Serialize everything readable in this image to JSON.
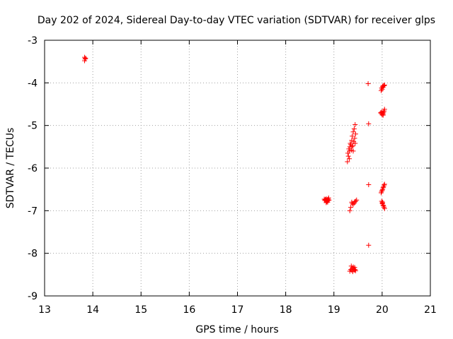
{
  "chart_data": {
    "type": "scatter",
    "title": "Day 202 of 2024, Sidereal Day-to-day VTEC variation (SDTVAR) for receiver glps",
    "xlabel": "GPS time / hours",
    "ylabel": "SDTVAR / TECUs",
    "xlim": [
      13,
      21
    ],
    "ylim": [
      -9,
      -3
    ],
    "xticks": [
      13,
      14,
      15,
      16,
      17,
      18,
      19,
      20,
      21
    ],
    "yticks": [
      -3,
      -4,
      -5,
      -6,
      -7,
      -8,
      -9
    ],
    "grid": true,
    "marker": "+",
    "series_color": "#ff0000",
    "series": [
      {
        "name": "SDTVAR",
        "points": [
          [
            13.83,
            -3.4
          ],
          [
            13.84,
            -3.44
          ],
          [
            13.85,
            -3.42
          ],
          [
            13.83,
            -3.48
          ],
          [
            18.8,
            -6.73
          ],
          [
            18.81,
            -6.76
          ],
          [
            18.82,
            -6.74
          ],
          [
            18.83,
            -6.75
          ],
          [
            18.84,
            -6.72
          ],
          [
            18.85,
            -6.79
          ],
          [
            18.86,
            -6.74
          ],
          [
            18.86,
            -6.77
          ],
          [
            18.87,
            -6.8
          ],
          [
            18.88,
            -6.73
          ],
          [
            18.89,
            -6.7
          ],
          [
            18.9,
            -6.75
          ],
          [
            18.84,
            -6.81
          ],
          [
            18.88,
            -6.76
          ],
          [
            19.28,
            -5.85
          ],
          [
            19.3,
            -5.72
          ],
          [
            19.32,
            -5.6
          ],
          [
            19.33,
            -5.5
          ],
          [
            19.35,
            -5.45
          ],
          [
            19.37,
            -5.35
          ],
          [
            19.38,
            -5.25
          ],
          [
            19.4,
            -5.15
          ],
          [
            19.42,
            -5.08
          ],
          [
            19.44,
            -4.98
          ],
          [
            19.31,
            -5.55
          ],
          [
            19.34,
            -5.42
          ],
          [
            19.36,
            -5.58
          ],
          [
            19.39,
            -5.48
          ],
          [
            19.41,
            -5.38
          ],
          [
            19.43,
            -5.3
          ],
          [
            19.45,
            -5.2
          ],
          [
            19.29,
            -5.65
          ],
          [
            19.32,
            -5.78
          ],
          [
            19.37,
            -5.5
          ],
          [
            19.4,
            -5.6
          ],
          [
            19.44,
            -5.42
          ],
          [
            19.33,
            -7.0
          ],
          [
            19.35,
            -6.92
          ],
          [
            19.37,
            -6.8
          ],
          [
            19.4,
            -6.85
          ],
          [
            19.42,
            -6.82
          ],
          [
            19.45,
            -6.78
          ],
          [
            19.47,
            -6.75
          ],
          [
            19.38,
            -6.83
          ],
          [
            19.43,
            -6.79
          ],
          [
            19.33,
            -8.42
          ],
          [
            19.35,
            -8.38
          ],
          [
            19.37,
            -8.4
          ],
          [
            19.38,
            -8.35
          ],
          [
            19.4,
            -8.32
          ],
          [
            19.41,
            -8.36
          ],
          [
            19.42,
            -8.4
          ],
          [
            19.43,
            -8.33
          ],
          [
            19.44,
            -8.38
          ],
          [
            19.45,
            -8.41
          ],
          [
            19.39,
            -8.43
          ],
          [
            19.36,
            -8.3
          ],
          [
            19.71,
            -4.02
          ],
          [
            19.72,
            -4.96
          ],
          [
            19.72,
            -6.39
          ],
          [
            19.72,
            -7.81
          ],
          [
            19.98,
            -4.18
          ],
          [
            19.99,
            -4.12
          ],
          [
            20.0,
            -4.15
          ],
          [
            20.01,
            -4.08
          ],
          [
            20.02,
            -4.1
          ],
          [
            20.03,
            -4.06
          ],
          [
            20.04,
            -4.07
          ],
          [
            20.05,
            -4.05
          ],
          [
            19.97,
            -4.7
          ],
          [
            19.98,
            -4.72
          ],
          [
            19.99,
            -4.68
          ],
          [
            20.0,
            -4.75
          ],
          [
            20.01,
            -4.71
          ],
          [
            20.02,
            -4.73
          ],
          [
            20.03,
            -4.69
          ],
          [
            20.04,
            -4.66
          ],
          [
            20.05,
            -4.62
          ],
          [
            20.02,
            -4.76
          ],
          [
            19.98,
            -6.58
          ],
          [
            19.99,
            -6.55
          ],
          [
            20.0,
            -6.52
          ],
          [
            20.01,
            -6.5
          ],
          [
            20.02,
            -6.46
          ],
          [
            20.03,
            -6.44
          ],
          [
            20.04,
            -6.4
          ],
          [
            20.05,
            -6.38
          ],
          [
            19.99,
            -6.78
          ],
          [
            20.0,
            -6.82
          ],
          [
            20.01,
            -6.84
          ],
          [
            20.02,
            -6.87
          ],
          [
            20.03,
            -6.89
          ],
          [
            20.04,
            -6.92
          ],
          [
            20.05,
            -6.95
          ],
          [
            20.01,
            -6.8
          ]
        ]
      }
    ]
  }
}
